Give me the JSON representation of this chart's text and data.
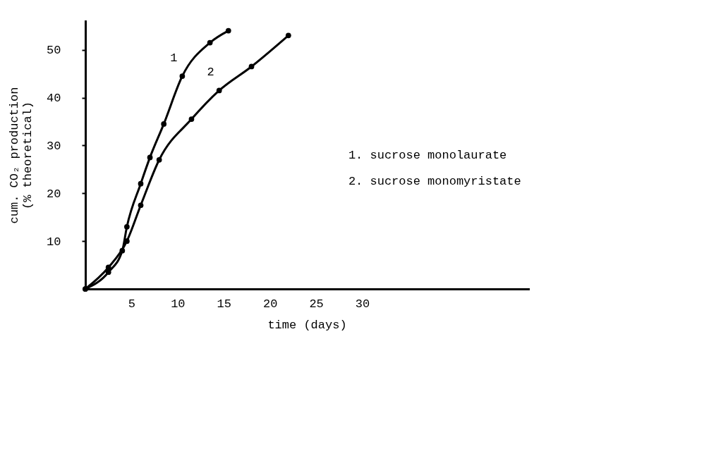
{
  "chart_data": {
    "type": "line",
    "xlabel": "time (days)",
    "ylabel": "cum. CO₂ production\n(% theoretical)",
    "xlim": [
      0,
      48
    ],
    "ylim": [
      0,
      56
    ],
    "xticks": [
      5,
      10,
      15,
      20,
      25,
      30
    ],
    "yticks": [
      10,
      20,
      30,
      40,
      50
    ],
    "grid": false,
    "marker": "circle",
    "line_style": "solid",
    "series": [
      {
        "name": "1",
        "color": "#000000",
        "x": [
          0,
          2.5,
          4,
          4.5,
          6,
          7,
          8.5,
          10.5,
          13.5,
          15.5
        ],
        "values": [
          0,
          3.5,
          8,
          13,
          22,
          27.5,
          34.5,
          44.5,
          51.5,
          54
        ]
      },
      {
        "name": "2",
        "color": "#000000",
        "x": [
          0,
          2.5,
          4.5,
          6,
          8,
          11.5,
          14.5,
          18,
          22
        ],
        "values": [
          0,
          4.5,
          10,
          17.5,
          27,
          35.5,
          41.5,
          46.5,
          53
        ]
      }
    ],
    "annotations": [
      "1. sucrose monolaurate",
      "2. sucrose monomyristate"
    ]
  }
}
